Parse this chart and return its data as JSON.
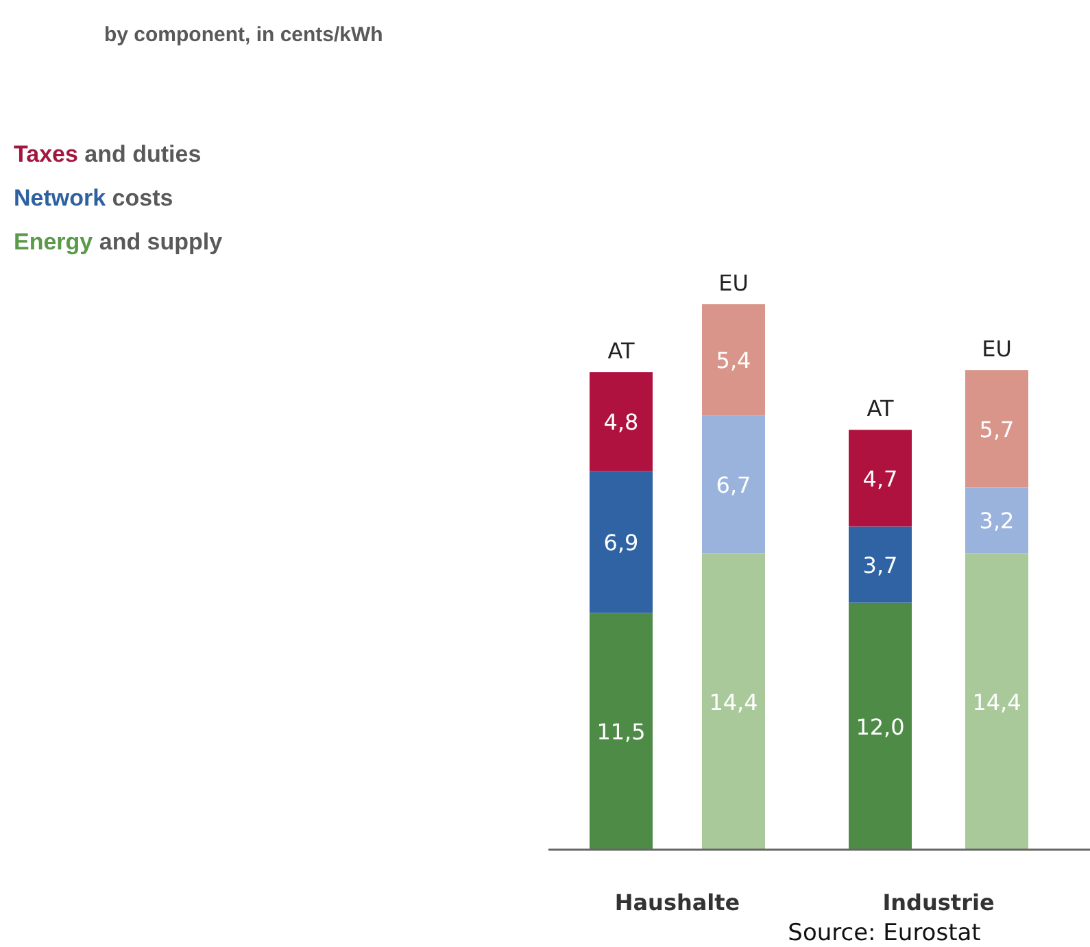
{
  "chart_data": [
    {
      "type": "other",
      "title": "by component, in cents/kWh"
    },
    {
      "type": "bar",
      "stacked": true,
      "xlabel": "Haushalte",
      "categories": [
        "AT",
        "EU"
      ],
      "series": [
        {
          "name": "Energy and supply",
          "color": "#5a9a4a",
          "colors": [
            "#4e8b47",
            "#a9c99a"
          ],
          "values": [
            11.5,
            14.4
          ],
          "value_labels": [
            "11,5",
            "14,4"
          ]
        },
        {
          "name": "Network costs",
          "color": "#2e61a0",
          "colors": [
            "#2f63a3",
            "#9ab3dd"
          ],
          "values": [
            6.9,
            6.7
          ],
          "value_labels": [
            "6,9",
            "6,7"
          ]
        },
        {
          "name": "Taxes and duties",
          "color": "#a3173f",
          "colors": [
            "#b0123f",
            "#d9958a"
          ],
          "values": [
            4.8,
            5.4
          ],
          "value_labels": [
            "4,8",
            "5,4"
          ]
        }
      ],
      "legend": "top left"
    },
    {
      "type": "bar",
      "stacked": true,
      "xlabel": "Industrie",
      "categories": [
        "AT",
        "EU"
      ],
      "series": [
        {
          "colors": [
            "#4e8b47",
            "#a9c99a"
          ],
          "values": [
            12.0,
            14.4
          ],
          "value_labels": [
            "12,0",
            "14,4"
          ]
        },
        {
          "colors": [
            "#2f63a3",
            "#9ab3dd"
          ],
          "values": [
            3.7,
            3.2
          ],
          "value_labels": [
            "3,7",
            "3,2"
          ]
        },
        {
          "colors": [
            "#b0123f",
            "#d9958a"
          ],
          "values": [
            4.7,
            5.7
          ],
          "value_labels": [
            "4,7",
            "5,7"
          ]
        }
      ],
      "annotations": [
        "Source: Eurostat"
      ]
    }
  ]
}
